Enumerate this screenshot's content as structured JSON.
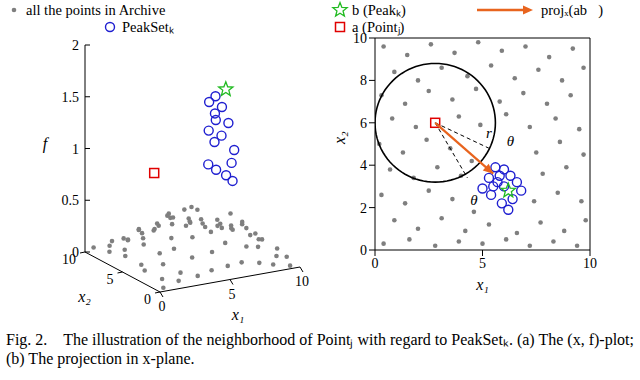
{
  "caption": "Fig. 2.    The illustration of the neighborhood of Pointⱼ with regard to PeakSetₖ. (a) The (x, f)-plot; (b) The projection in x-plane.",
  "chart_data": [
    {
      "type": "scatter3d",
      "xlabel": "x₁",
      "ylabel": "x₂",
      "zlabel": "f",
      "xlim": [
        0,
        10
      ],
      "ylim": [
        0,
        10
      ],
      "zlim": [
        0,
        2
      ],
      "xticks": [
        0,
        5,
        10
      ],
      "yticks": [
        0,
        5,
        10
      ],
      "zticks": [
        0,
        0.5,
        1,
        1.5,
        2
      ],
      "series": [
        {
          "color": "#7f7f7f",
          "marker": "dot",
          "x": [
            0.4,
            1.5,
            2.6,
            3.7,
            4.8,
            5.9,
            7.0,
            8.1,
            9.2,
            0.9,
            2.0,
            3.1,
            4.3,
            5.4,
            6.5,
            7.6,
            8.7,
            9.7,
            0.3,
            1.4,
            2.5,
            3.6,
            4.7,
            5.8,
            6.9,
            8.0,
            9.1,
            0.8,
            1.9,
            3.9,
            4.9,
            6.1,
            7.2,
            8.4,
            9.5,
            0.2,
            1.3,
            2.4,
            3.5,
            4.5,
            7.5,
            8.6,
            9.7,
            0.7,
            1.8,
            2.9,
            4.0,
            7.8,
            8.9,
            0.3,
            1.4,
            2.5,
            3.6,
            4.6,
            7.4,
            8.5,
            9.6,
            0.9,
            2.0,
            3.1,
            4.2,
            5.3,
            6.6,
            7.7,
            8.8,
            9.8,
            0.4,
            1.6,
            2.8,
            3.9,
            5.0,
            6.1,
            7.2,
            8.3,
            9.4
          ],
          "y": [
            9.6,
            9.2,
            9.7,
            9.3,
            9.8,
            9.4,
            9.6,
            9.1,
            9.5,
            8.4,
            8.0,
            8.6,
            8.2,
            8.7,
            8.1,
            8.5,
            8.0,
            8.6,
            7.3,
            6.9,
            7.5,
            7.1,
            7.6,
            7.0,
            7.4,
            6.9,
            7.3,
            6.2,
            5.8,
            6.3,
            5.9,
            6.4,
            5.8,
            6.2,
            5.7,
            5.0,
            4.6,
            5.2,
            4.8,
            4.2,
            4.6,
            5.1,
            4.5,
            3.8,
            3.4,
            3.9,
            3.5,
            3.6,
            3.9,
            2.6,
            2.2,
            2.8,
            2.4,
            1.8,
            2.3,
            2.7,
            2.3,
            1.4,
            1.0,
            1.5,
            0.9,
            1.2,
            0.8,
            1.3,
            0.9,
            1.4,
            0.3,
            0.5,
            0.2,
            0.4,
            0.3,
            0.5,
            0.2,
            0.4,
            0.2
          ],
          "z": [
            0.05,
            0.1,
            0.08,
            0.12,
            0.1,
            0.15,
            0.1,
            0.08,
            0.05,
            0.1,
            0.15,
            0.2,
            0.22,
            0.25,
            0.2,
            0.15,
            0.1,
            0.05,
            0.1,
            0.2,
            0.25,
            0.3,
            0.35,
            0.3,
            0.25,
            0.2,
            0.1,
            0.15,
            0.25,
            0.4,
            0.45,
            0.4,
            0.3,
            0.2,
            0.1,
            0.15,
            0.25,
            0.35,
            0.45,
            0.55,
            0.4,
            0.25,
            0.1,
            0.1,
            0.2,
            0.3,
            0.45,
            0.35,
            0.2,
            0.1,
            0.15,
            0.25,
            0.35,
            0.4,
            0.35,
            0.2,
            0.1,
            0.05,
            0.1,
            0.2,
            0.25,
            0.3,
            0.25,
            0.2,
            0.1,
            0.05,
            0.02,
            0.05,
            0.08,
            0.1,
            0.12,
            0.12,
            0.1,
            0.05,
            0.02
          ]
        },
        {
          "color": "#1f1fd0",
          "marker": "circle",
          "x": [
            5.6,
            6.0,
            5.3,
            5.8,
            6.3,
            5.5,
            6.6,
            5.0,
            6.0,
            6.8,
            5.4,
            6.4,
            5.9,
            6.2,
            5.7
          ],
          "y": [
            3.9,
            3.8,
            3.4,
            3.5,
            3.5,
            3.0,
            3.2,
            2.9,
            3.0,
            2.8,
            2.6,
            2.4,
            2.2,
            1.9,
            3.2
          ],
          "z": [
            1.55,
            1.6,
            1.3,
            1.45,
            1.5,
            1.2,
            1.35,
            1.0,
            1.25,
            1.1,
            0.95,
            1.0,
            0.9,
            0.85,
            1.4
          ]
        },
        {
          "color": "#22bb22",
          "marker": "star",
          "x": [
            6.2
          ],
          "y": [
            2.8
          ],
          "z": [
            1.7
          ]
        },
        {
          "color": "#e00000",
          "marker": "square",
          "x": [
            2.8
          ],
          "y": [
            6.0
          ],
          "z": [
            0.85
          ]
        }
      ]
    },
    {
      "type": "scatter",
      "xlabel": "x₁",
      "ylabel": "x₂",
      "xlim": [
        0,
        10
      ],
      "ylim": [
        0,
        10
      ],
      "xticks": [
        0,
        5,
        10
      ],
      "yticks": [
        0,
        2,
        4,
        6,
        8,
        10
      ],
      "radius": 2.8,
      "series": [
        {
          "name": "all the points in Archive",
          "color": "#7f7f7f",
          "marker": "dot",
          "x": [
            0.4,
            1.5,
            2.6,
            3.7,
            4.8,
            5.9,
            7.0,
            8.1,
            9.2,
            0.9,
            2.0,
            3.1,
            4.3,
            5.4,
            6.5,
            7.6,
            8.7,
            9.7,
            0.3,
            1.4,
            2.5,
            3.6,
            4.7,
            5.8,
            6.9,
            8.0,
            9.1,
            0.8,
            1.9,
            3.9,
            4.9,
            6.1,
            7.2,
            8.4,
            9.5,
            0.2,
            1.3,
            2.4,
            3.5,
            4.5,
            7.5,
            8.6,
            9.7,
            0.7,
            1.8,
            2.9,
            4.0,
            7.8,
            8.9,
            0.3,
            1.4,
            2.5,
            3.6,
            4.6,
            7.4,
            8.5,
            9.6,
            0.9,
            2.0,
            3.1,
            4.2,
            5.3,
            6.6,
            7.7,
            8.8,
            9.8,
            0.4,
            1.6,
            2.8,
            3.9,
            5.0,
            6.1,
            7.2,
            8.3,
            9.4
          ],
          "y": [
            9.6,
            9.2,
            9.7,
            9.3,
            9.8,
            9.4,
            9.6,
            9.1,
            9.5,
            8.4,
            8.0,
            8.6,
            8.2,
            8.7,
            8.1,
            8.5,
            8.0,
            8.6,
            7.3,
            6.9,
            7.5,
            7.1,
            7.6,
            7.0,
            7.4,
            6.9,
            7.3,
            6.2,
            5.8,
            6.3,
            5.9,
            6.4,
            5.8,
            6.2,
            5.7,
            5.0,
            4.6,
            5.2,
            4.8,
            4.2,
            4.6,
            5.1,
            4.5,
            3.8,
            3.4,
            3.9,
            3.5,
            3.6,
            3.9,
            2.6,
            2.2,
            2.8,
            2.4,
            1.8,
            2.3,
            2.7,
            2.3,
            1.4,
            1.0,
            1.5,
            0.9,
            1.2,
            0.8,
            1.3,
            0.9,
            1.4,
            0.3,
            0.5,
            0.2,
            0.4,
            0.3,
            0.5,
            0.2,
            0.4,
            0.2
          ]
        },
        {
          "name": "PeakSetₖ",
          "color": "#1f1fd0",
          "marker": "circle",
          "x": [
            5.6,
            6.0,
            5.3,
            5.8,
            6.3,
            5.5,
            6.6,
            5.0,
            6.0,
            6.8,
            5.4,
            6.4,
            5.9,
            6.2,
            5.7
          ],
          "y": [
            3.9,
            3.8,
            3.4,
            3.5,
            3.5,
            3.0,
            3.2,
            2.9,
            3.0,
            2.8,
            2.6,
            2.4,
            2.2,
            1.9,
            3.2
          ]
        },
        {
          "name": "b (Peakₖ)",
          "color": "#22bb22",
          "marker": "star",
          "x": [
            6.2
          ],
          "y": [
            2.8
          ]
        },
        {
          "name": "a (Pointⱼ)",
          "color": "#e00000",
          "marker": "square",
          "x": [
            2.8
          ],
          "y": [
            6.0
          ]
        },
        {
          "name": "projₓ(ab⃗)",
          "color": "#e8641e",
          "type": "arrow",
          "x": [
            2.8,
            5.5
          ],
          "y": [
            6.0,
            3.6
          ]
        }
      ],
      "lines": [
        {
          "x": [
            2.8,
            5.3
          ],
          "y": [
            6.0,
            4.8
          ],
          "line_style": "dashed"
        },
        {
          "x": [
            2.8,
            4.3
          ],
          "y": [
            6.0,
            3.4
          ],
          "line_style": "dashed"
        }
      ],
      "annotations": [
        {
          "text": "r",
          "x": 5.3,
          "y": 5.3
        },
        {
          "text": "θ",
          "x": 6.3,
          "y": 4.9
        },
        {
          "text": "θ",
          "x": 4.6,
          "y": 2.1
        }
      ]
    }
  ]
}
